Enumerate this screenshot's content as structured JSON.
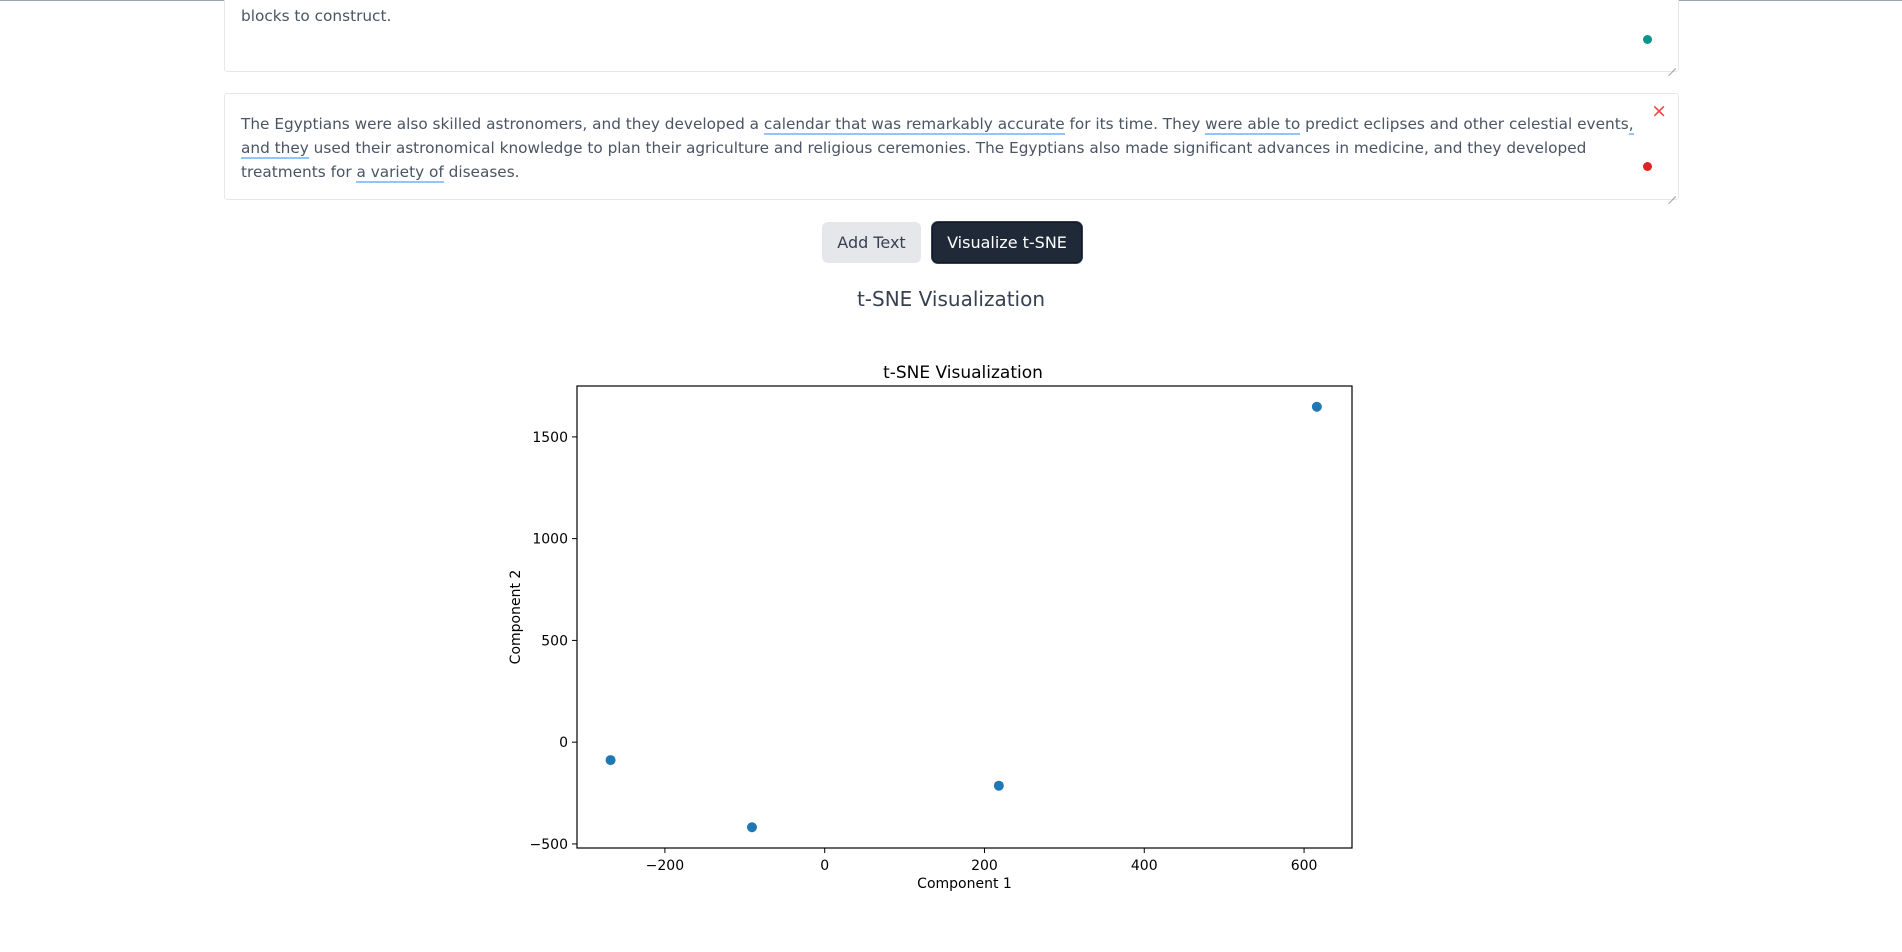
{
  "textareas": [
    {
      "text": "and their queens, and they remain a popular tourist destination today. The Great Pyramid of Giza, the largest of the three pyramids, is estimated to have taken over two million stone blocks to construct."
    },
    {
      "segments": [
        {
          "t": "The Egyptians were also skilled astronomers, and they developed a "
        },
        {
          "t": "calendar that was remarkably accurate",
          "hl": true
        },
        {
          "t": " for its time. They "
        },
        {
          "t": "were able to",
          "hl": true
        },
        {
          "t": " predict eclipses and other celestial events"
        },
        {
          "t": ", and they",
          "hl": true
        },
        {
          "t": " used their astronomical knowledge to plan their agriculture and religious ceremonies. The Egyptians also made significant advances in medicine, and they developed treatments for "
        },
        {
          "t": "a variety of",
          "hl": true
        },
        {
          "t": " diseases."
        }
      ],
      "close_icon": "×"
    }
  ],
  "buttons": {
    "add_text": "Add Text",
    "visualize": "Visualize t-SNE"
  },
  "section_title": "t-SNE Visualization",
  "colors": {
    "point": "#1f77b4",
    "dot_green": "#0d9488",
    "dot_red": "#dc2626",
    "highlight": "#93c5fd"
  },
  "chart_data": {
    "type": "scatter",
    "title": "t-SNE Visualization",
    "xlabel": "Component 1",
    "ylabel": "Component 2",
    "xlim": [
      -310,
      660
    ],
    "ylim": [
      -520,
      1750
    ],
    "xticks": [
      -200,
      0,
      200,
      400,
      600
    ],
    "yticks": [
      -500,
      0,
      500,
      1000,
      1500
    ],
    "points": [
      {
        "x": -268,
        "y": -88
      },
      {
        "x": -91,
        "y": -418
      },
      {
        "x": 218,
        "y": -214
      },
      {
        "x": 616,
        "y": 1648
      }
    ],
    "grid": false,
    "legend": "none"
  }
}
